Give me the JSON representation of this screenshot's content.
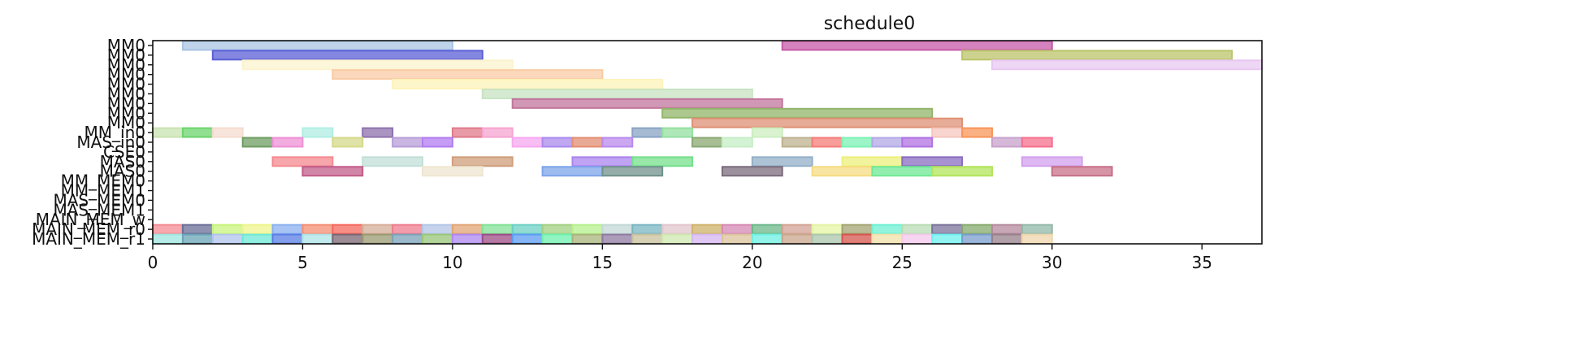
{
  "chart_data": {
    "type": "gantt",
    "title": "schedule0",
    "xlabel": "",
    "ylabel": "",
    "xlim": [
      0,
      37
    ],
    "xticks": [
      0,
      5,
      10,
      15,
      20,
      25,
      30,
      35
    ],
    "grid": false,
    "rows": [
      "MM0",
      "MM0",
      "MM0",
      "MM0",
      "MM0",
      "MM0",
      "MM0",
      "MM0",
      "MM0",
      "MM_in0",
      "MAS_in0",
      "CSE0",
      "MAS0",
      "MAS0",
      "MM_MEM0",
      "MM_MEM1",
      "MAS_MEM0",
      "MAS_MEM1",
      "MAIN_MEM_w",
      "MAIN_MEM_r0",
      "MAIN_MEM_r1"
    ],
    "bars": [
      {
        "row": 0,
        "start": 1,
        "end": 10,
        "color": "#a9c4e4"
      },
      {
        "row": 0,
        "start": 21,
        "end": 30,
        "color": "#c65aa8"
      },
      {
        "row": 1,
        "start": 2,
        "end": 11,
        "color": "#5b5fd6"
      },
      {
        "row": 1,
        "start": 27,
        "end": 36,
        "color": "#bcc46a"
      },
      {
        "row": 2,
        "start": 3,
        "end": 12,
        "color": "#fbf3cd"
      },
      {
        "row": 2,
        "start": 28,
        "end": 37,
        "color": "#e8c8f2"
      },
      {
        "row": 3,
        "start": 6,
        "end": 15,
        "color": "#f9cba4"
      },
      {
        "row": 4,
        "start": 8,
        "end": 17,
        "color": "#fdf3ba"
      },
      {
        "row": 5,
        "start": 11,
        "end": 20,
        "color": "#c8e3c3"
      },
      {
        "row": 6,
        "start": 12,
        "end": 21,
        "color": "#c2769c"
      },
      {
        "row": 7,
        "start": 17,
        "end": 26,
        "color": "#91b56a"
      },
      {
        "row": 8,
        "start": 18,
        "end": 27,
        "color": "#de9074"
      },
      {
        "row": 9,
        "start": 0,
        "end": 1,
        "color": "#c8e3b0"
      },
      {
        "row": 9,
        "start": 1,
        "end": 2,
        "color": "#6cd46c"
      },
      {
        "row": 9,
        "start": 2,
        "end": 3,
        "color": "#f4dcd0"
      },
      {
        "row": 9,
        "start": 5,
        "end": 6,
        "color": "#b0eee4"
      },
      {
        "row": 9,
        "start": 7,
        "end": 8,
        "color": "#8e72ad"
      },
      {
        "row": 9,
        "start": 10,
        "end": 11,
        "color": "#e07a8a"
      },
      {
        "row": 9,
        "start": 11,
        "end": 12,
        "color": "#f6a4d0"
      },
      {
        "row": 9,
        "start": 16,
        "end": 17,
        "color": "#8aa3c4"
      },
      {
        "row": 9,
        "start": 17,
        "end": 18,
        "color": "#94e0a0"
      },
      {
        "row": 9,
        "start": 20,
        "end": 21,
        "color": "#cdeec0"
      },
      {
        "row": 9,
        "start": 26,
        "end": 27,
        "color": "#f5c7be"
      },
      {
        "row": 9,
        "start": 27,
        "end": 28,
        "color": "#f9955a"
      },
      {
        "row": 10,
        "start": 3,
        "end": 4,
        "color": "#6e9d62"
      },
      {
        "row": 10,
        "start": 4,
        "end": 5,
        "color": "#ee90d6"
      },
      {
        "row": 10,
        "start": 6,
        "end": 7,
        "color": "#d6d98a"
      },
      {
        "row": 10,
        "start": 8,
        "end": 9,
        "color": "#b89ed8"
      },
      {
        "row": 10,
        "start": 9,
        "end": 10,
        "color": "#b27cf0"
      },
      {
        "row": 10,
        "start": 12,
        "end": 13,
        "color": "#f6a8f0"
      },
      {
        "row": 10,
        "start": 13,
        "end": 14,
        "color": "#a98aee"
      },
      {
        "row": 10,
        "start": 14,
        "end": 15,
        "color": "#e28e72"
      },
      {
        "row": 10,
        "start": 15,
        "end": 16,
        "color": "#b98aee"
      },
      {
        "row": 10,
        "start": 18,
        "end": 19,
        "color": "#8aa872"
      },
      {
        "row": 10,
        "start": 19,
        "end": 20,
        "color": "#c6eec6"
      },
      {
        "row": 10,
        "start": 21,
        "end": 22,
        "color": "#bdb18e"
      },
      {
        "row": 10,
        "start": 22,
        "end": 23,
        "color": "#f47c78"
      },
      {
        "row": 10,
        "start": 23,
        "end": 24,
        "color": "#7cf2b4"
      },
      {
        "row": 10,
        "start": 24,
        "end": 25,
        "color": "#b2a8e6"
      },
      {
        "row": 10,
        "start": 25,
        "end": 26,
        "color": "#b072e2"
      },
      {
        "row": 10,
        "start": 28,
        "end": 29,
        "color": "#c8a2cc"
      },
      {
        "row": 10,
        "start": 29,
        "end": 30,
        "color": "#f6708e"
      },
      {
        "row": 12,
        "start": 4,
        "end": 6,
        "color": "#f48a90"
      },
      {
        "row": 12,
        "start": 7,
        "end": 9,
        "color": "#c2e0d8"
      },
      {
        "row": 12,
        "start": 10,
        "end": 12,
        "color": "#cf9e7a"
      },
      {
        "row": 12,
        "start": 14,
        "end": 16,
        "color": "#ab84ee"
      },
      {
        "row": 12,
        "start": 16,
        "end": 18,
        "color": "#74e08c"
      },
      {
        "row": 12,
        "start": 20,
        "end": 22,
        "color": "#93b0c8"
      },
      {
        "row": 12,
        "start": 23,
        "end": 25,
        "color": "#ecf07c"
      },
      {
        "row": 12,
        "start": 25,
        "end": 27,
        "color": "#8a6cc2"
      },
      {
        "row": 12,
        "start": 29,
        "end": 31,
        "color": "#d3a0ee"
      },
      {
        "row": 13,
        "start": 5,
        "end": 7,
        "color": "#c25c8a"
      },
      {
        "row": 13,
        "start": 9,
        "end": 11,
        "color": "#efe6d0"
      },
      {
        "row": 13,
        "start": 13,
        "end": 15,
        "color": "#7ea4ea"
      },
      {
        "row": 13,
        "start": 15,
        "end": 17,
        "color": "#70928c"
      },
      {
        "row": 13,
        "start": 19,
        "end": 21,
        "color": "#7c6c7e"
      },
      {
        "row": 13,
        "start": 22,
        "end": 24,
        "color": "#f6dc82"
      },
      {
        "row": 13,
        "start": 24,
        "end": 26,
        "color": "#6ee894"
      },
      {
        "row": 13,
        "start": 26,
        "end": 28,
        "color": "#b2e45a"
      },
      {
        "row": 13,
        "start": 30,
        "end": 32,
        "color": "#c87088"
      },
      {
        "row": 19,
        "start": 0,
        "end": 1,
        "color": "#f48a92"
      },
      {
        "row": 19,
        "start": 1,
        "end": 2,
        "color": "#6a6e96"
      },
      {
        "row": 19,
        "start": 2,
        "end": 3,
        "color": "#c8f47c"
      },
      {
        "row": 19,
        "start": 3,
        "end": 4,
        "color": "#eef48c"
      },
      {
        "row": 19,
        "start": 4,
        "end": 5,
        "color": "#8ab0f0"
      },
      {
        "row": 19,
        "start": 5,
        "end": 6,
        "color": "#f48e72"
      },
      {
        "row": 19,
        "start": 6,
        "end": 7,
        "color": "#f4685c"
      },
      {
        "row": 19,
        "start": 7,
        "end": 8,
        "color": "#d6ae98"
      },
      {
        "row": 19,
        "start": 8,
        "end": 9,
        "color": "#ee7c8c"
      },
      {
        "row": 19,
        "start": 9,
        "end": 10,
        "color": "#b2c6e6"
      },
      {
        "row": 19,
        "start": 10,
        "end": 11,
        "color": "#e2a474"
      },
      {
        "row": 19,
        "start": 11,
        "end": 12,
        "color": "#82e296"
      },
      {
        "row": 19,
        "start": 12,
        "end": 13,
        "color": "#6cd0c4"
      },
      {
        "row": 19,
        "start": 13,
        "end": 14,
        "color": "#a2d082"
      },
      {
        "row": 19,
        "start": 14,
        "end": 15,
        "color": "#b6f08c"
      },
      {
        "row": 19,
        "start": 15,
        "end": 16,
        "color": "#c2d8d6"
      },
      {
        "row": 19,
        "start": 16,
        "end": 17,
        "color": "#7ab6c2"
      },
      {
        "row": 19,
        "start": 17,
        "end": 18,
        "color": "#e2c6cc"
      },
      {
        "row": 19,
        "start": 18,
        "end": 19,
        "color": "#cfb26a"
      },
      {
        "row": 19,
        "start": 19,
        "end": 20,
        "color": "#d688b4"
      },
      {
        "row": 19,
        "start": 20,
        "end": 21,
        "color": "#6cb888"
      },
      {
        "row": 19,
        "start": 21,
        "end": 22,
        "color": "#d2a294"
      },
      {
        "row": 19,
        "start": 22,
        "end": 23,
        "color": "#e4f4a4"
      },
      {
        "row": 19,
        "start": 23,
        "end": 24,
        "color": "#a4a472"
      },
      {
        "row": 19,
        "start": 24,
        "end": 25,
        "color": "#6ef0d2"
      },
      {
        "row": 19,
        "start": 25,
        "end": 26,
        "color": "#b8dcb4"
      },
      {
        "row": 19,
        "start": 26,
        "end": 27,
        "color": "#7c749c"
      },
      {
        "row": 19,
        "start": 27,
        "end": 28,
        "color": "#86aa6c"
      },
      {
        "row": 19,
        "start": 28,
        "end": 29,
        "color": "#b48a9c"
      },
      {
        "row": 19,
        "start": 29,
        "end": 30,
        "color": "#92b8a8"
      },
      {
        "row": 20,
        "start": 0,
        "end": 1,
        "color": "#9ee6e0"
      },
      {
        "row": 20,
        "start": 1,
        "end": 2,
        "color": "#6aa4b6"
      },
      {
        "row": 20,
        "start": 2,
        "end": 3,
        "color": "#b2c4ee"
      },
      {
        "row": 20,
        "start": 3,
        "end": 4,
        "color": "#6ee8d6"
      },
      {
        "row": 20,
        "start": 4,
        "end": 5,
        "color": "#5a7ee6"
      },
      {
        "row": 20,
        "start": 5,
        "end": 6,
        "color": "#aee4e8"
      },
      {
        "row": 20,
        "start": 6,
        "end": 7,
        "color": "#7a6672"
      },
      {
        "row": 20,
        "start": 7,
        "end": 8,
        "color": "#9a9a72"
      },
      {
        "row": 20,
        "start": 8,
        "end": 9,
        "color": "#7aa2ba"
      },
      {
        "row": 20,
        "start": 9,
        "end": 10,
        "color": "#98c67a"
      },
      {
        "row": 20,
        "start": 10,
        "end": 11,
        "color": "#ae88f0"
      },
      {
        "row": 20,
        "start": 11,
        "end": 12,
        "color": "#9c4c86"
      },
      {
        "row": 20,
        "start": 12,
        "end": 13,
        "color": "#5c9cf2"
      },
      {
        "row": 20,
        "start": 13,
        "end": 14,
        "color": "#6ef0ae"
      },
      {
        "row": 20,
        "start": 14,
        "end": 15,
        "color": "#a8b47a"
      },
      {
        "row": 20,
        "start": 15,
        "end": 16,
        "color": "#907aa2"
      },
      {
        "row": 20,
        "start": 16,
        "end": 17,
        "color": "#c8c29c"
      },
      {
        "row": 20,
        "start": 17,
        "end": 18,
        "color": "#cfe8b0"
      },
      {
        "row": 20,
        "start": 18,
        "end": 19,
        "color": "#d6b6f2"
      },
      {
        "row": 20,
        "start": 19,
        "end": 20,
        "color": "#dcc39c"
      },
      {
        "row": 20,
        "start": 20,
        "end": 21,
        "color": "#6ef0e2"
      },
      {
        "row": 20,
        "start": 21,
        "end": 22,
        "color": "#caa68c"
      },
      {
        "row": 20,
        "start": 22,
        "end": 23,
        "color": "#acc6ac"
      },
      {
        "row": 20,
        "start": 23,
        "end": 24,
        "color": "#d6564e"
      },
      {
        "row": 20,
        "start": 24,
        "end": 25,
        "color": "#f0e0a8"
      },
      {
        "row": 20,
        "start": 25,
        "end": 26,
        "color": "#f4c8ec"
      },
      {
        "row": 20,
        "start": 26,
        "end": 27,
        "color": "#6ef0ee"
      },
      {
        "row": 20,
        "start": 27,
        "end": 28,
        "color": "#7a9ecc"
      },
      {
        "row": 20,
        "start": 28,
        "end": 29,
        "color": "#98808c"
      },
      {
        "row": 20,
        "start": 29,
        "end": 30,
        "color": "#efd6ac"
      }
    ]
  }
}
